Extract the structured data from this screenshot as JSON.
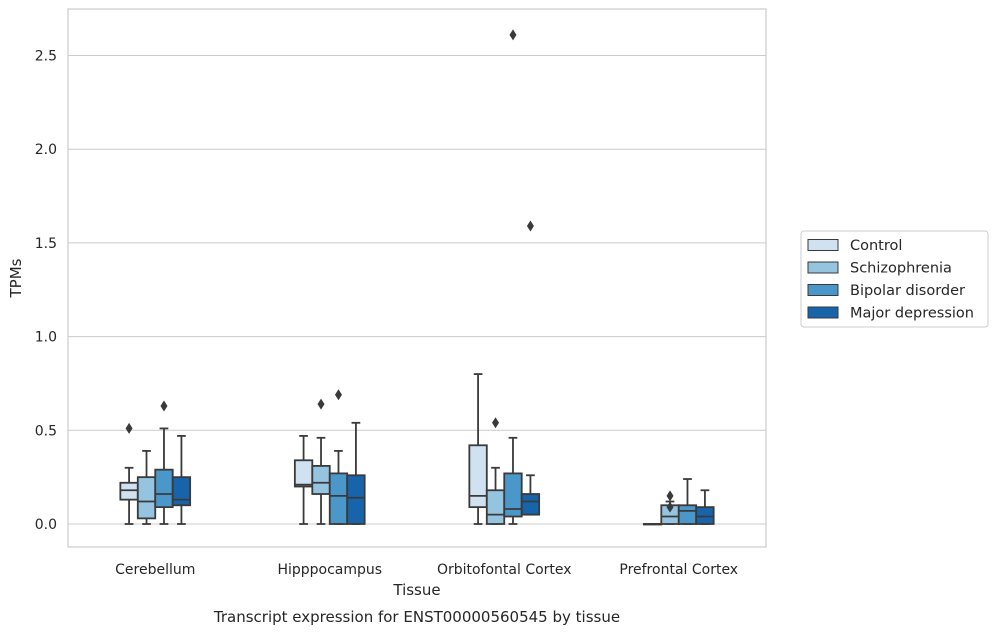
{
  "chart_data": {
    "type": "box",
    "xlabel": "Tissue",
    "ylabel": "TPMs",
    "caption": "Transcript expression for ENST00000560545 by tissue",
    "ylim": [
      -0.13,
      2.76
    ],
    "yticks": [
      0.0,
      0.5,
      1.0,
      1.5,
      2.0,
      2.5
    ],
    "ytick_labels": [
      "0.0",
      "0.5",
      "1.0",
      "1.5",
      "2.0",
      "2.5"
    ],
    "grid": "horizontal",
    "legend_position": "right",
    "categories": [
      "Cerebellum",
      "Hipppocampus",
      "Orbitofontal Cortex",
      "Prefrontal Cortex"
    ],
    "series": [
      {
        "name": "Control",
        "color": "#d0e1f2",
        "boxes": [
          {
            "whislo": 0.0,
            "q1": 0.13,
            "med": 0.18,
            "q3": 0.22,
            "whishi": 0.3,
            "fliers": [
              0.51
            ]
          },
          {
            "whislo": 0.0,
            "q1": 0.2,
            "med": 0.21,
            "q3": 0.34,
            "whishi": 0.47,
            "fliers": []
          },
          {
            "whislo": 0.0,
            "q1": 0.09,
            "med": 0.15,
            "q3": 0.42,
            "whishi": 0.8,
            "fliers": []
          },
          {
            "whislo": 0.0,
            "q1": 0.0,
            "med": 0.0,
            "q3": 0.0,
            "whishi": 0.0,
            "fliers": []
          }
        ]
      },
      {
        "name": "Schizophrenia",
        "color": "#94c4df",
        "boxes": [
          {
            "whislo": 0.0,
            "q1": 0.03,
            "med": 0.12,
            "q3": 0.25,
            "whishi": 0.39,
            "fliers": []
          },
          {
            "whislo": 0.0,
            "q1": 0.16,
            "med": 0.22,
            "q3": 0.31,
            "whishi": 0.46,
            "fliers": [
              0.64
            ]
          },
          {
            "whislo": 0.0,
            "q1": 0.0,
            "med": 0.05,
            "q3": 0.18,
            "whishi": 0.3,
            "fliers": [
              0.54
            ]
          },
          {
            "whislo": 0.0,
            "q1": 0.0,
            "med": 0.04,
            "q3": 0.1,
            "whishi": 0.12,
            "fliers": [
              0.15,
              0.09
            ]
          }
        ]
      },
      {
        "name": "Bipolar disorder",
        "color": "#4a98c9",
        "boxes": [
          {
            "whislo": 0.0,
            "q1": 0.09,
            "med": 0.16,
            "q3": 0.29,
            "whishi": 0.51,
            "fliers": [
              0.63
            ]
          },
          {
            "whislo": 0.0,
            "q1": 0.0,
            "med": 0.15,
            "q3": 0.27,
            "whishi": 0.39,
            "fliers": [
              0.69
            ]
          },
          {
            "whislo": 0.0,
            "q1": 0.04,
            "med": 0.08,
            "q3": 0.27,
            "whishi": 0.46,
            "fliers": [
              2.61
            ]
          },
          {
            "whislo": 0.0,
            "q1": 0.0,
            "med": 0.07,
            "q3": 0.1,
            "whishi": 0.24,
            "fliers": []
          }
        ]
      },
      {
        "name": "Major depression",
        "color": "#1764ab",
        "boxes": [
          {
            "whislo": 0.0,
            "q1": 0.1,
            "med": 0.13,
            "q3": 0.25,
            "whishi": 0.47,
            "fliers": []
          },
          {
            "whislo": 0.0,
            "q1": 0.0,
            "med": 0.14,
            "q3": 0.26,
            "whishi": 0.54,
            "fliers": []
          },
          {
            "whislo": 0.05,
            "q1": 0.05,
            "med": 0.12,
            "q3": 0.16,
            "whishi": 0.26,
            "fliers": [
              1.59
            ]
          },
          {
            "whislo": 0.0,
            "q1": 0.0,
            "med": 0.04,
            "q3": 0.09,
            "whishi": 0.18,
            "fliers": []
          }
        ]
      }
    ]
  }
}
